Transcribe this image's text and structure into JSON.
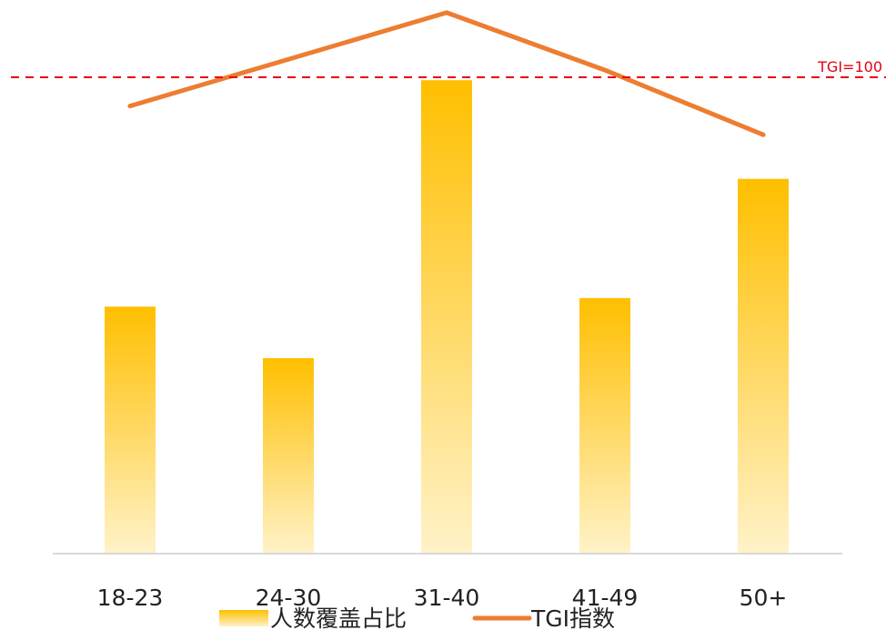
{
  "chart_data": {
    "type": "bar",
    "categories": [
      "18-23",
      "24-30",
      "31-40",
      "41-49",
      "50+"
    ],
    "series": [
      {
        "name": "人数覆盖占比",
        "type": "bar",
        "values": [
          28.8,
          22.8,
          55.2,
          29.8,
          43.7
        ]
      },
      {
        "name": "TGI指数",
        "type": "line",
        "values": [
          92,
          105,
          118,
          102,
          84
        ]
      }
    ],
    "reference_line": {
      "value": 100,
      "label": "TGI=100"
    },
    "legend": {
      "placement": "bottom-center"
    },
    "grid": false,
    "colors": {
      "bar_top": "#FFBF00",
      "bar_bottom": "#FFF2C8",
      "line": "#ED7D31",
      "reference": "#E60012",
      "axis": "#D9D9D9"
    }
  }
}
